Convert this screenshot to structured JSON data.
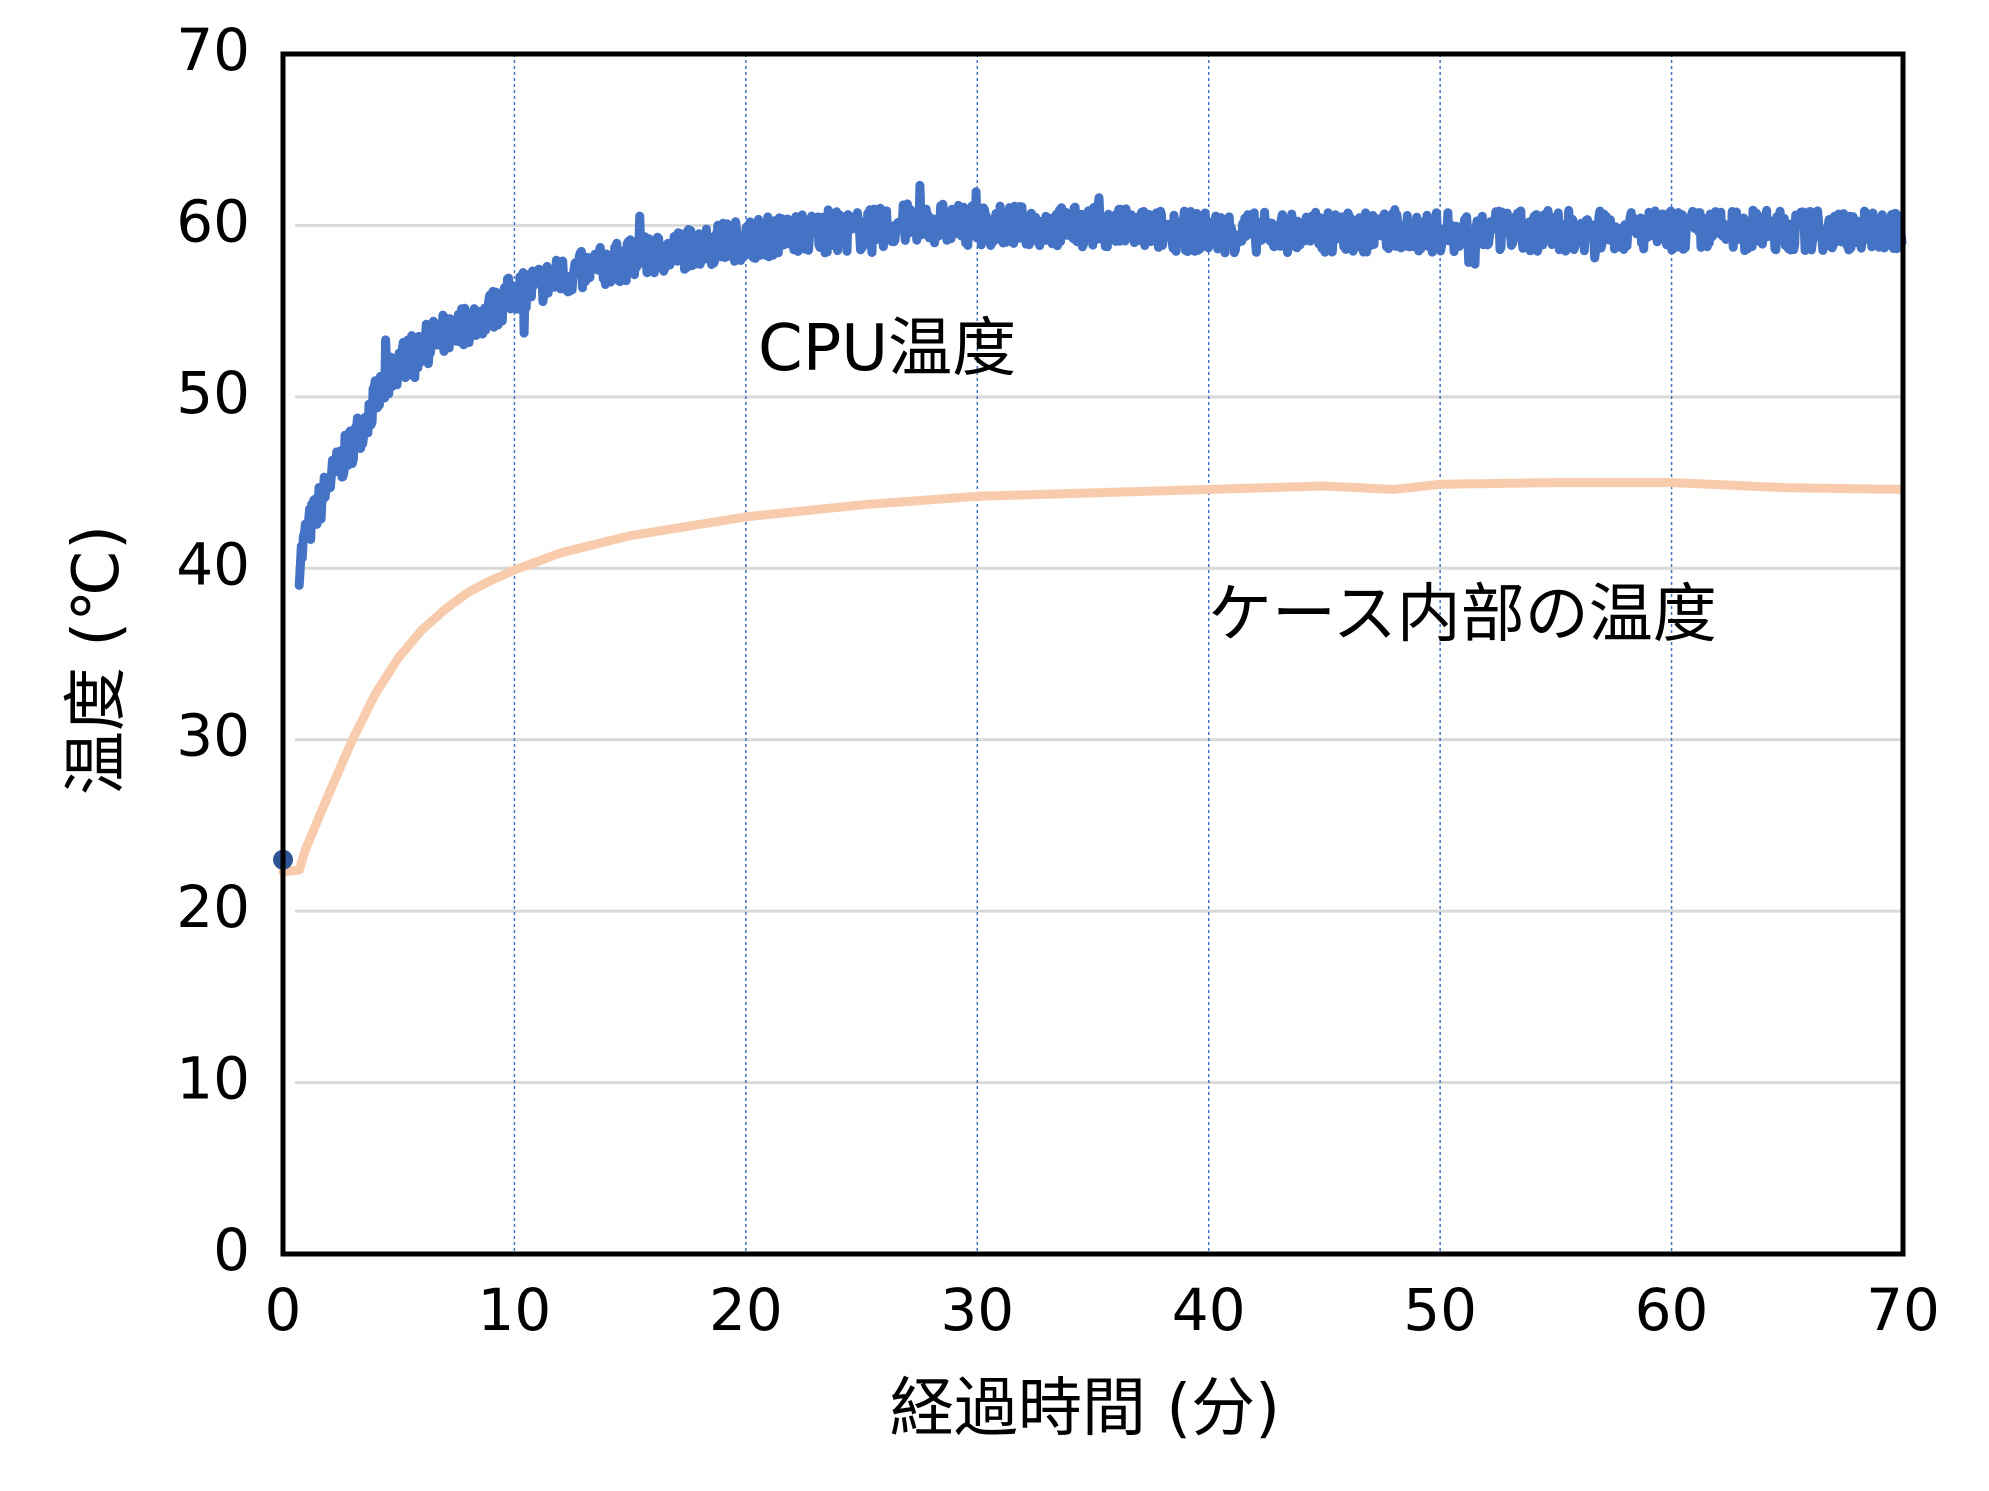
{
  "chart_data": {
    "type": "line",
    "title": "",
    "xlabel": "経過時間 (分)",
    "ylabel": "温度 (℃)",
    "xlim": [
      0,
      70
    ],
    "ylim": [
      0,
      70
    ],
    "x_ticks": [
      0,
      10,
      20,
      30,
      40,
      50,
      60,
      70
    ],
    "y_ticks": [
      0,
      10,
      20,
      30,
      40,
      50,
      60,
      70
    ],
    "grid": {
      "horizontal": true,
      "vertical": true,
      "vertical_style": "dotted"
    },
    "legend": "none (inline annotations)",
    "annotations": [
      {
        "text": "CPU温度",
        "x": 20.3,
        "y": 51.5,
        "series": "CPU温度"
      },
      {
        "text": "ケース内部の温度",
        "x": 39.8,
        "y": 36.2,
        "series": "ケース内部の温度"
      }
    ],
    "series": [
      {
        "name": "CPU温度",
        "color": "#4472C4",
        "noise_band": 1.2,
        "x": [
          0.7,
          1,
          2,
          3,
          4,
          5,
          6,
          7,
          8,
          9,
          10,
          12,
          15,
          18,
          20,
          22,
          25,
          27.5,
          30,
          35,
          40,
          45,
          50,
          55,
          60,
          65,
          70
        ],
        "y": [
          40.2,
          42.0,
          45.0,
          47.3,
          49.8,
          52.0,
          52.9,
          53.7,
          54.3,
          55.0,
          56.1,
          57.0,
          58.0,
          58.8,
          59.2,
          59.5,
          59.7,
          60.2,
          60.0,
          59.9,
          59.6,
          59.6,
          59.6,
          59.7,
          59.7,
          59.7,
          59.7
        ]
      },
      {
        "name": "ケース内部の温度",
        "color": "#F8CBAD",
        "x": [
          0,
          0.7,
          1,
          2,
          3,
          4,
          5,
          6,
          7,
          8,
          9,
          10,
          12,
          15,
          20,
          25,
          30,
          35,
          40,
          45,
          48,
          50,
          55,
          60,
          65,
          70
        ],
        "y": [
          22.3,
          22.4,
          23.7,
          26.9,
          30.0,
          32.7,
          34.8,
          36.4,
          37.6,
          38.6,
          39.3,
          39.9,
          40.9,
          41.9,
          43.0,
          43.7,
          44.2,
          44.4,
          44.6,
          44.8,
          44.6,
          44.9,
          45.0,
          45.0,
          44.7,
          44.6
        ]
      },
      {
        "name": "start-point",
        "color": "#2F5597",
        "marker": "circle",
        "x": [
          0
        ],
        "y": [
          23.0
        ]
      }
    ]
  },
  "labels": {
    "x_axis_title": "経過時間 (分)",
    "y_axis_title": "温度 (℃)",
    "cpu_label": "CPU温度",
    "case_label": "ケース内部の温度"
  },
  "colors": {
    "cpu": "#4472C4",
    "case": "#F8CBAD",
    "start_dot": "#2F5597",
    "h_grid": "#D9D9D9",
    "v_grid": "#4472C4",
    "frame": "#000000"
  }
}
